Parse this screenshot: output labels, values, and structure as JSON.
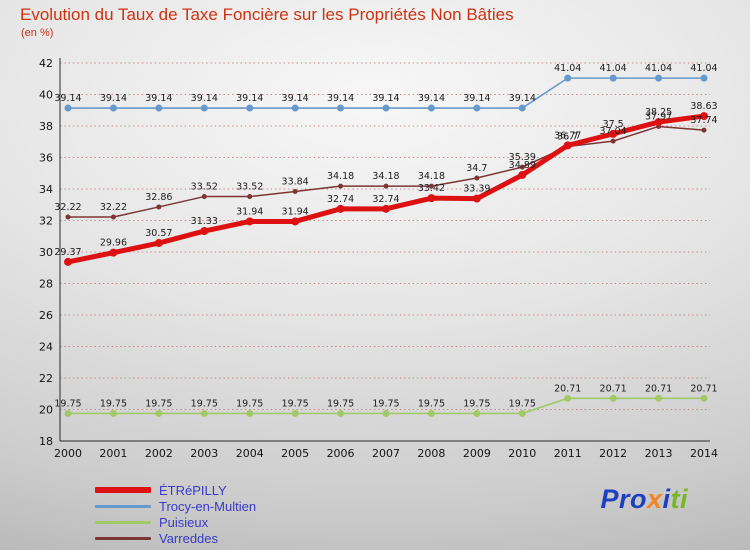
{
  "title": "Evolution du Taux de Taxe Foncière sur les Propriétés Non Bâties",
  "subtitle": "(en %)",
  "colors": {
    "title_color": "#cc3311",
    "legend_text_color": "#3a3ac8",
    "grid_color": "#c98c8c",
    "axis_color": "#2a2a2a"
  },
  "logo": {
    "name": "proxiti",
    "parts": [
      {
        "text": "Pro",
        "color": "#1d40c0"
      },
      {
        "text": "x",
        "color": "#f5831f"
      },
      {
        "text": "i",
        "color": "#1d40c0"
      },
      {
        "text": "ti",
        "color": "#76b82a"
      }
    ]
  },
  "chart_data": {
    "type": "line",
    "x": [
      2000,
      2001,
      2002,
      2003,
      2004,
      2005,
      2006,
      2007,
      2008,
      2009,
      2010,
      2011,
      2012,
      2013,
      2014
    ],
    "ylim": [
      18,
      42
    ],
    "ytick_step": 2,
    "grid": "dotted-horizontal",
    "legend_position": "bottom-left",
    "series": [
      {
        "name": "ÉTRéPILLY",
        "color": "#dd1111",
        "width": 5,
        "marker": 4,
        "values": [
          29.37,
          29.96,
          30.57,
          31.33,
          31.94,
          31.94,
          32.74,
          32.74,
          33.42,
          33.39,
          34.89,
          36.77,
          37.5,
          38.25,
          38.63
        ]
      },
      {
        "name": "Trocy-en-Multien",
        "color": "#6699cc",
        "width": 1.6,
        "marker": 3.5,
        "values": [
          39.14,
          39.14,
          39.14,
          39.14,
          39.14,
          39.14,
          39.14,
          39.14,
          39.14,
          39.14,
          39.14,
          41.04,
          41.04,
          41.04,
          41.04
        ]
      },
      {
        "name": "Puisieux",
        "color": "#a2c968",
        "width": 1.6,
        "marker": 3.5,
        "values": [
          19.75,
          19.75,
          19.75,
          19.75,
          19.75,
          19.75,
          19.75,
          19.75,
          19.75,
          19.75,
          19.75,
          20.71,
          20.71,
          20.71,
          20.71
        ]
      },
      {
        "name": "Varreddes",
        "color": "#7d3535",
        "width": 1.5,
        "marker": 2.5,
        "values": [
          32.22,
          32.22,
          32.86,
          33.52,
          33.52,
          33.84,
          34.18,
          34.18,
          34.18,
          34.7,
          35.39,
          36.7,
          37.04,
          37.97,
          37.74
        ]
      }
    ]
  }
}
